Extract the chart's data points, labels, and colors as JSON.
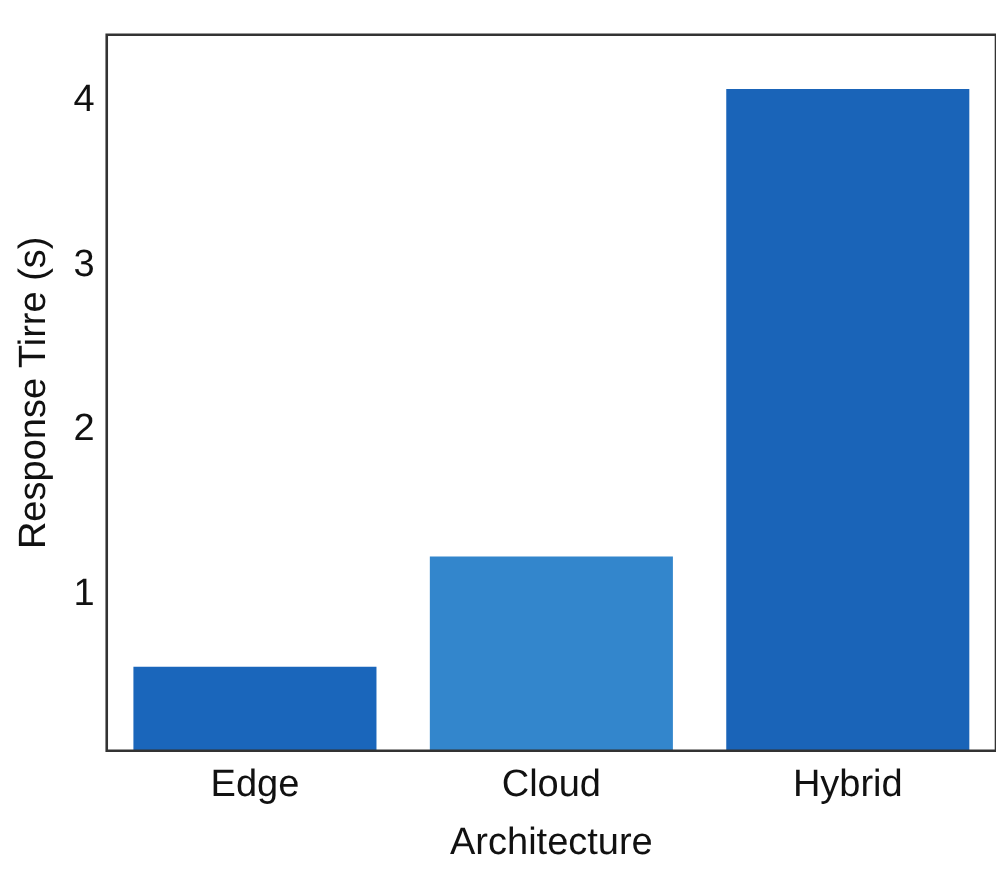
{
  "chart_data": {
    "type": "bar",
    "xlabel": "Architecture",
    "ylabel": "Response Tirre (s)",
    "categories": [
      "Edge",
      "Cloud",
      "Hybrid"
    ],
    "values": [
      0.56,
      1.23,
      4.07
    ],
    "colors": [
      "#1a66bb",
      "#3386cc",
      "#1a64b8"
    ],
    "ylim": [
      0.05,
      4.4
    ],
    "yticks": [
      1,
      2,
      3,
      4
    ],
    "grid": false,
    "legend": false
  }
}
